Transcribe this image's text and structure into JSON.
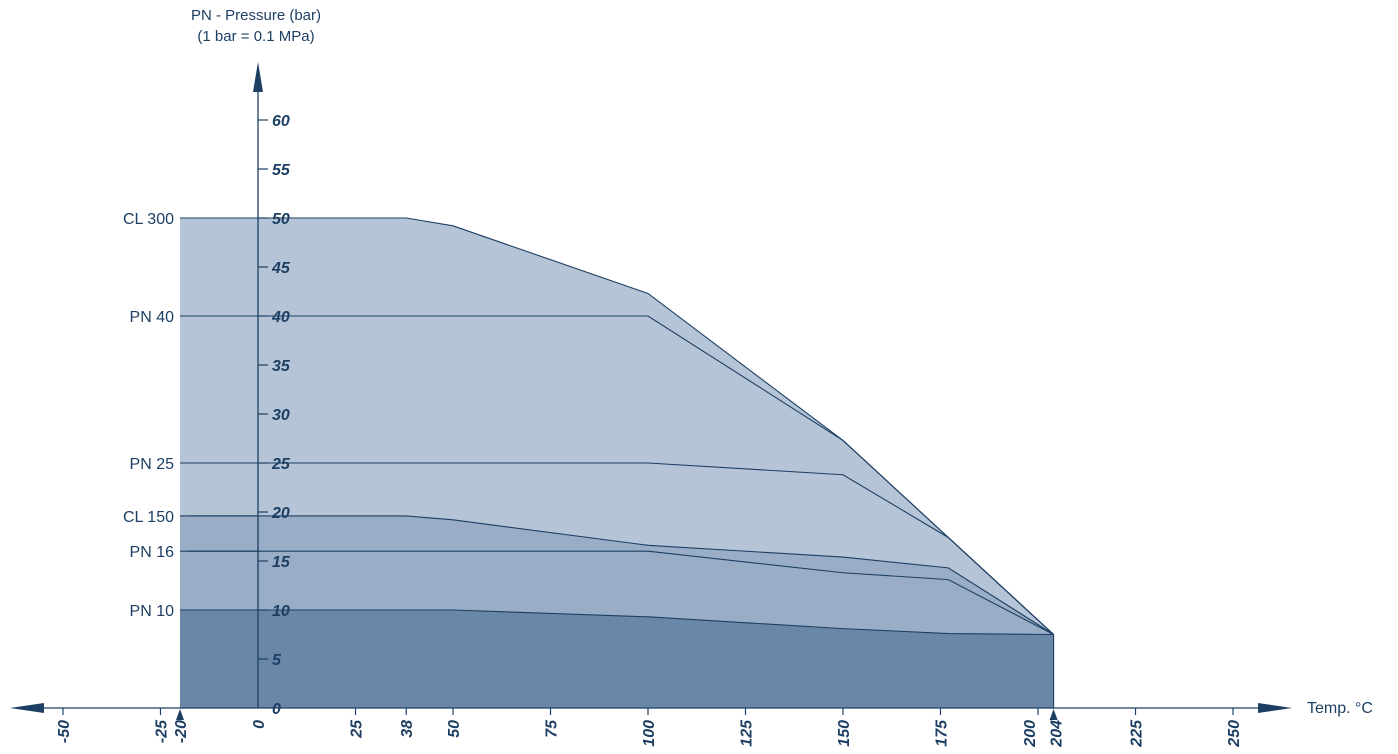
{
  "chart_data": {
    "type": "area",
    "title": "",
    "ylabel_lines": [
      "PN - Pressure (bar)",
      "(1 bar = 0.1 MPa)"
    ],
    "xlabel": "Temp. °C",
    "xlim": [
      -50,
      250
    ],
    "ylim": [
      0,
      60
    ],
    "x_ticks": [
      "-50",
      "-25",
      "-20",
      "0",
      "25",
      "38",
      "50",
      "75",
      "100",
      "125",
      "150",
      "175",
      "200",
      "204",
      "225",
      "250"
    ],
    "y_ticks": [
      "0",
      "5",
      "10",
      "15",
      "20",
      "25",
      "30",
      "35",
      "40",
      "45",
      "50",
      "55",
      "60"
    ],
    "grid": false,
    "series": [
      {
        "name": "CL 300",
        "x": [
          -20,
          38,
          50,
          100,
          150,
          177,
          204
        ],
        "y": [
          50,
          50,
          49.2,
          42.3,
          27.3,
          17.4,
          7.5
        ]
      },
      {
        "name": "PN 40",
        "x": [
          -20,
          100,
          150,
          177,
          204
        ],
        "y": [
          40,
          40,
          27.3,
          17.4,
          7.5
        ]
      },
      {
        "name": "PN 25",
        "x": [
          -20,
          100,
          150,
          177,
          204
        ],
        "y": [
          25,
          25,
          23.8,
          17.4,
          7.5
        ]
      },
      {
        "name": "CL 150",
        "x": [
          -20,
          38,
          50,
          100,
          150,
          177,
          204
        ],
        "y": [
          19.6,
          19.6,
          19.2,
          16.6,
          15.4,
          14.3,
          7.5
        ]
      },
      {
        "name": "PN 16",
        "x": [
          -20,
          38,
          50,
          100,
          150,
          177,
          204
        ],
        "y": [
          16,
          16,
          16,
          16,
          13.8,
          13.1,
          7.5
        ]
      },
      {
        "name": "PN 10",
        "x": [
          -20,
          50,
          100,
          150,
          177,
          204
        ],
        "y": [
          10,
          10,
          9.3,
          8.1,
          7.6,
          7.5
        ]
      }
    ],
    "colors": {
      "upper_fill": "#b5c4d6",
      "middle_fill": "#9aadc6",
      "lower_fill": "#6b87a8",
      "line": "#1d3f63",
      "text": "#1d3f63"
    }
  }
}
